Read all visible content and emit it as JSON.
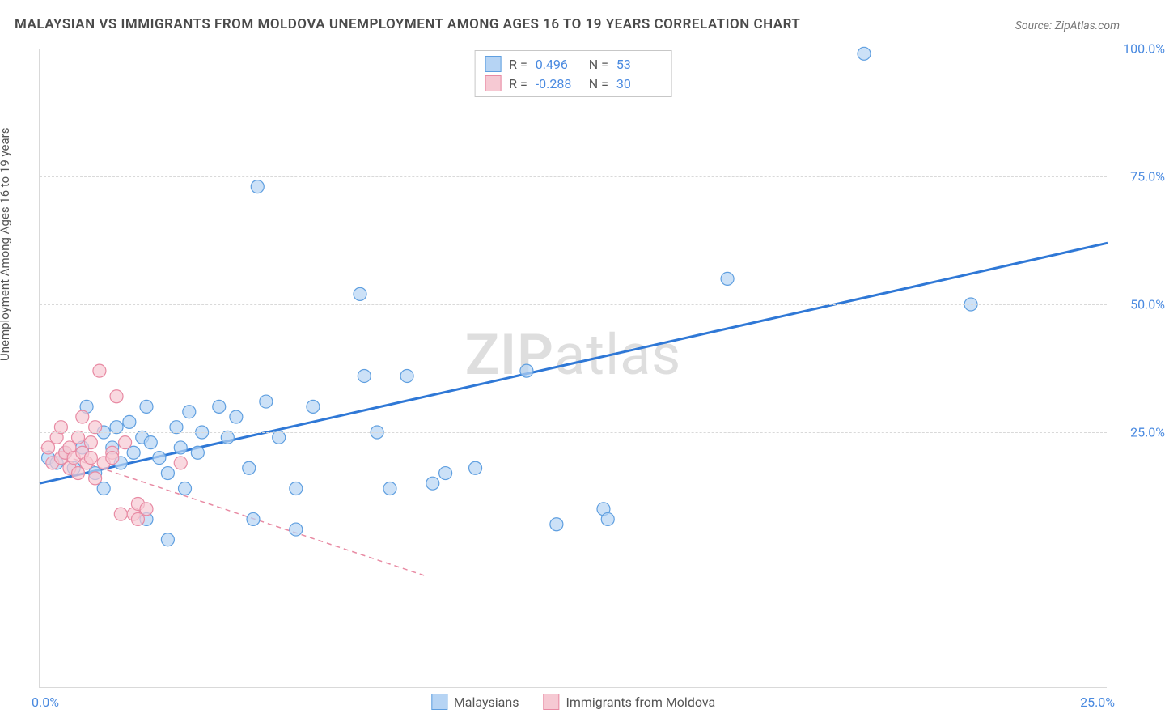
{
  "title": "MALAYSIAN VS IMMIGRANTS FROM MOLDOVA UNEMPLOYMENT AMONG AGES 16 TO 19 YEARS CORRELATION CHART",
  "source": "Source: ZipAtlas.com",
  "ylabel": "Unemployment Among Ages 16 to 19 years",
  "watermark_a": "ZIP",
  "watermark_b": "atlas",
  "chart": {
    "type": "scatter",
    "xlim": [
      0,
      25
    ],
    "ylim": [
      -25,
      100
    ],
    "xticks": [
      0,
      2.08,
      4.16,
      6.25,
      8.33,
      10.42,
      12.5,
      14.58,
      16.67,
      18.75,
      20.83,
      22.92,
      25
    ],
    "yticks": [
      25,
      50,
      75,
      100
    ],
    "ytick_labels": [
      "25.0%",
      "50.0%",
      "75.0%",
      "100.0%"
    ],
    "x_origin_label": "0.0%",
    "x_max_label": "25.0%",
    "background_color": "#ffffff",
    "grid_color": "#d9d9d9",
    "marker_radius": 8,
    "marker_stroke_width": 1.2,
    "series": [
      {
        "name": "Malaysians",
        "fill": "#b6d4f4",
        "stroke": "#5f9fe0",
        "line_color": "#2f78d6",
        "line_dash": "none",
        "line_width": 3,
        "r": 0.496,
        "n": 53,
        "trend": {
          "x1": 0,
          "y1": 15,
          "x2": 25,
          "y2": 62
        },
        "points": [
          [
            0.2,
            20
          ],
          [
            0.4,
            19
          ],
          [
            0.6,
            21
          ],
          [
            0.8,
            18
          ],
          [
            1.0,
            22
          ],
          [
            1.1,
            30
          ],
          [
            1.3,
            17
          ],
          [
            1.5,
            25
          ],
          [
            1.5,
            14
          ],
          [
            1.7,
            22
          ],
          [
            1.8,
            26
          ],
          [
            1.9,
            19
          ],
          [
            2.1,
            27
          ],
          [
            2.2,
            21
          ],
          [
            2.4,
            24
          ],
          [
            2.5,
            30
          ],
          [
            2.5,
            8
          ],
          [
            2.6,
            23
          ],
          [
            2.8,
            20
          ],
          [
            3.0,
            17
          ],
          [
            3.0,
            4
          ],
          [
            3.2,
            26
          ],
          [
            3.3,
            22
          ],
          [
            3.4,
            14
          ],
          [
            3.5,
            29
          ],
          [
            3.7,
            21
          ],
          [
            3.8,
            25
          ],
          [
            4.2,
            30
          ],
          [
            4.4,
            24
          ],
          [
            4.6,
            28
          ],
          [
            4.9,
            18
          ],
          [
            5.0,
            8
          ],
          [
            5.3,
            31
          ],
          [
            5.6,
            24
          ],
          [
            6.0,
            14
          ],
          [
            6.0,
            6
          ],
          [
            6.4,
            30
          ],
          [
            7.5,
            52
          ],
          [
            7.6,
            36
          ],
          [
            7.9,
            25
          ],
          [
            8.2,
            14
          ],
          [
            8.6,
            36
          ],
          [
            9.2,
            15
          ],
          [
            9.5,
            17
          ],
          [
            10.2,
            18
          ],
          [
            11.4,
            37
          ],
          [
            12.1,
            7
          ],
          [
            13.2,
            10
          ],
          [
            13.3,
            8
          ],
          [
            16.1,
            55
          ],
          [
            19.3,
            99
          ],
          [
            21.8,
            50
          ],
          [
            5.1,
            73
          ]
        ]
      },
      {
        "name": "Immigrants from Moldova",
        "fill": "#f6c9d3",
        "stroke": "#e88aa3",
        "line_color": "#e88aa3",
        "line_dash": "6 5",
        "line_width": 1.5,
        "r": -0.288,
        "n": 30,
        "trend": {
          "x1": 0,
          "y1": 22,
          "x2": 9,
          "y2": -3
        },
        "points": [
          [
            0.2,
            22
          ],
          [
            0.3,
            19
          ],
          [
            0.4,
            24
          ],
          [
            0.5,
            20
          ],
          [
            0.5,
            26
          ],
          [
            0.6,
            21
          ],
          [
            0.7,
            22
          ],
          [
            0.7,
            18
          ],
          [
            0.8,
            20
          ],
          [
            0.9,
            24
          ],
          [
            0.9,
            17
          ],
          [
            1.0,
            21
          ],
          [
            1.0,
            28
          ],
          [
            1.1,
            19
          ],
          [
            1.2,
            20
          ],
          [
            1.2,
            23
          ],
          [
            1.3,
            26
          ],
          [
            1.3,
            16
          ],
          [
            1.4,
            37
          ],
          [
            1.5,
            19
          ],
          [
            1.7,
            21
          ],
          [
            1.7,
            20
          ],
          [
            1.8,
            32
          ],
          [
            1.9,
            9
          ],
          [
            2.0,
            23
          ],
          [
            2.2,
            9
          ],
          [
            2.3,
            11
          ],
          [
            2.3,
            8
          ],
          [
            2.5,
            10
          ],
          [
            3.3,
            19
          ]
        ]
      }
    ]
  },
  "legend_top": {
    "r_label": "R  =",
    "n_label": "N  ="
  },
  "legend_bottom": {
    "items": [
      "Malaysians",
      "Immigrants from Moldova"
    ]
  }
}
